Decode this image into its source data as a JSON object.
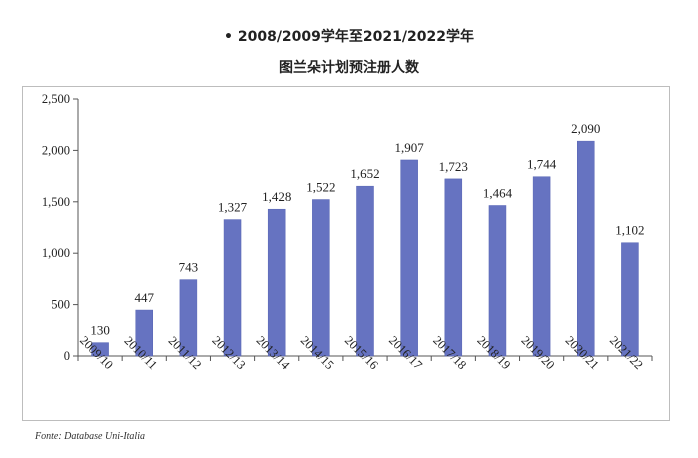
{
  "title_line1": "• 2008/2009学年至2021/2022学年",
  "title_line2": "图兰朵计划预注册人数",
  "source": "Fonte: Database Uni-Italia",
  "colors": {
    "bar": "#6673c1",
    "bar_edge": "#5563b3",
    "axis": "#555555",
    "frame": "#bdbdbd"
  },
  "chart_data": {
    "type": "bar",
    "categories": [
      "2009/10",
      "2010/11",
      "2011/12",
      "2012/13",
      "2013/14",
      "2014/15",
      "2015/16",
      "2016/17",
      "2017/18",
      "2018/19",
      "2019/20",
      "2020/21",
      "2021/22"
    ],
    "values": [
      130,
      447,
      743,
      1327,
      1428,
      1522,
      1652,
      1907,
      1723,
      1464,
      1744,
      2090,
      1102
    ],
    "value_labels": [
      "130",
      "447",
      "743",
      "1,327",
      "1,428",
      "1,522",
      "1,652",
      "1,907",
      "1,723",
      "1,464",
      "1,744",
      "2,090",
      "1,102"
    ],
    "y_ticks": [
      0,
      500,
      1000,
      1500,
      2000,
      2500
    ],
    "y_tick_labels": [
      "0",
      "500",
      "1,000",
      "1,500",
      "2,000",
      "2,500"
    ],
    "ylim": [
      0,
      2500
    ],
    "grid": false,
    "xlabel": "",
    "ylabel": ""
  }
}
